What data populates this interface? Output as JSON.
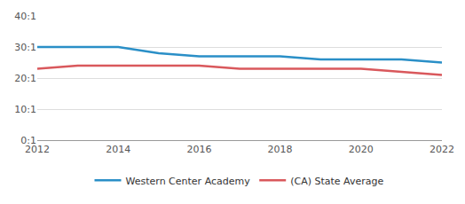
{
  "chart_data": {
    "type": "line",
    "x": [
      2012,
      2013,
      2014,
      2015,
      2016,
      2017,
      2018,
      2019,
      2020,
      2021,
      2022
    ],
    "series": [
      {
        "name": "Western Center Academy",
        "color": "#2a8fc7",
        "values": [
          30,
          30,
          30,
          28,
          27,
          27,
          27,
          26,
          26,
          26,
          25
        ]
      },
      {
        "name": "(CA) State Average",
        "color": "#d9585c",
        "values": [
          23,
          24,
          24,
          24,
          24,
          23,
          23,
          23,
          23,
          22,
          21
        ]
      }
    ],
    "xlim": [
      2012,
      2022
    ],
    "xticks": [
      2012,
      2014,
      2016,
      2018,
      2020,
      2022
    ],
    "ylim": [
      0,
      40
    ],
    "yticks": [
      {
        "value": 0,
        "label": "0:1"
      },
      {
        "value": 10,
        "label": "10:1"
      },
      {
        "value": 20,
        "label": "20:1"
      },
      {
        "value": 30,
        "label": "30:1"
      },
      {
        "value": 40,
        "label": "40:1"
      }
    ],
    "grid": true,
    "legend": "bottom"
  }
}
